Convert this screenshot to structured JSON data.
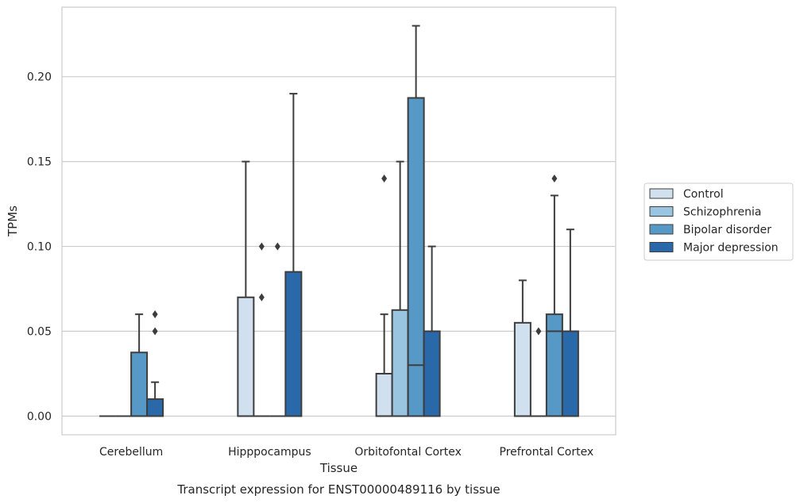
{
  "chart_data": {
    "type": "box",
    "xlabel": "Tissue",
    "ylabel": "TPMs",
    "caption": "Transcript expression for ENST00000489116 by tissue",
    "ylim": [
      -0.011,
      0.241
    ],
    "yticks": [
      0.0,
      0.05,
      0.1,
      0.15,
      0.2
    ],
    "ytick_labels": [
      "0.00",
      "0.05",
      "0.10",
      "0.15",
      "0.20"
    ],
    "grid": true,
    "legend_position": "right",
    "categories": [
      "Cerebellum",
      "Hipppocampus",
      "Orbitofontal Cortex",
      "Prefrontal Cortex"
    ],
    "series": [
      {
        "name": "Control",
        "color": "#d0e0ef",
        "boxes": [
          {
            "q1": 0.0,
            "median": 0.0,
            "q3": 0.0,
            "whisker_low": 0.0,
            "whisker_high": 0.0,
            "outliers": []
          },
          {
            "q1": 0.0,
            "median": 0.0,
            "q3": 0.07,
            "whisker_low": 0.0,
            "whisker_high": 0.15,
            "outliers": []
          },
          {
            "q1": 0.0,
            "median": 0.0,
            "q3": 0.025,
            "whisker_low": 0.0,
            "whisker_high": 0.06,
            "outliers": [
              0.14
            ]
          },
          {
            "q1": 0.0,
            "median": 0.0,
            "q3": 0.055,
            "whisker_low": 0.0,
            "whisker_high": 0.08,
            "outliers": []
          }
        ]
      },
      {
        "name": "Schizophrenia",
        "color": "#9ac5e0",
        "boxes": [
          {
            "q1": 0.0,
            "median": 0.0,
            "q3": 0.0,
            "whisker_low": 0.0,
            "whisker_high": 0.0,
            "outliers": []
          },
          {
            "q1": 0.0,
            "median": 0.0,
            "q3": 0.0,
            "whisker_low": 0.0,
            "whisker_high": 0.0,
            "outliers": [
              0.07,
              0.1
            ]
          },
          {
            "q1": 0.0,
            "median": 0.0,
            "q3": 0.0625,
            "whisker_low": 0.0,
            "whisker_high": 0.15,
            "outliers": []
          },
          {
            "q1": 0.0,
            "median": 0.0,
            "q3": 0.0,
            "whisker_low": 0.0,
            "whisker_high": 0.0,
            "outliers": [
              0.05
            ]
          }
        ]
      },
      {
        "name": "Bipolar disorder",
        "color": "#5799c6",
        "boxes": [
          {
            "q1": 0.0,
            "median": 0.0,
            "q3": 0.0375,
            "whisker_low": 0.0,
            "whisker_high": 0.06,
            "outliers": []
          },
          {
            "q1": 0.0,
            "median": 0.0,
            "q3": 0.0,
            "whisker_low": 0.0,
            "whisker_high": 0.0,
            "outliers": [
              0.1
            ]
          },
          {
            "q1": 0.0,
            "median": 0.03,
            "q3": 0.1875,
            "whisker_low": 0.0,
            "whisker_high": 0.23,
            "outliers": []
          },
          {
            "q1": 0.0,
            "median": 0.05,
            "q3": 0.06,
            "whisker_low": 0.0,
            "whisker_high": 0.13,
            "outliers": [
              0.14
            ]
          }
        ]
      },
      {
        "name": "Major depression",
        "color": "#2a69a9",
        "boxes": [
          {
            "q1": 0.0,
            "median": 0.0,
            "q3": 0.01,
            "whisker_low": 0.0,
            "whisker_high": 0.02,
            "outliers": [
              0.05,
              0.06
            ]
          },
          {
            "q1": 0.0,
            "median": 0.0,
            "q3": 0.085,
            "whisker_low": 0.0,
            "whisker_high": 0.19,
            "outliers": []
          },
          {
            "q1": 0.0,
            "median": 0.0,
            "q3": 0.05,
            "whisker_low": 0.0,
            "whisker_high": 0.1,
            "outliers": []
          },
          {
            "q1": 0.0,
            "median": 0.0,
            "q3": 0.05,
            "whisker_low": 0.0,
            "whisker_high": 0.11,
            "outliers": []
          }
        ]
      }
    ]
  }
}
